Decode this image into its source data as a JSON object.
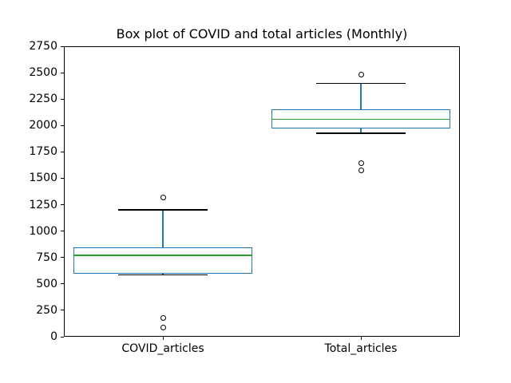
{
  "chart_data": {
    "type": "boxplot",
    "title": "Box plot of COVID and total articles (Monthly)",
    "categories": [
      "COVID_articles",
      "Total_articles"
    ],
    "series": [
      {
        "name": "COVID_articles",
        "whisker_low": 585,
        "q1": 595,
        "median": 770,
        "q3": 845,
        "whisker_high": 1200,
        "outliers": [
          1315,
          180,
          90
        ]
      },
      {
        "name": "Total_articles",
        "whisker_low": 1925,
        "q1": 1970,
        "median": 2060,
        "q3": 2150,
        "whisker_high": 2400,
        "outliers": [
          2485,
          1640,
          1575
        ]
      }
    ],
    "ylim": [
      0,
      2750
    ],
    "yticks": [
      0,
      250,
      500,
      750,
      1000,
      1250,
      1500,
      1750,
      2000,
      2250,
      2500,
      2750
    ],
    "grid": "off",
    "legend": "none",
    "colors": {
      "box": "#1f77b4",
      "whisker": "#1f77b4",
      "median": "#2ca02c",
      "cap": "#000000",
      "outlier": "#000000",
      "axis": "#000000"
    }
  }
}
